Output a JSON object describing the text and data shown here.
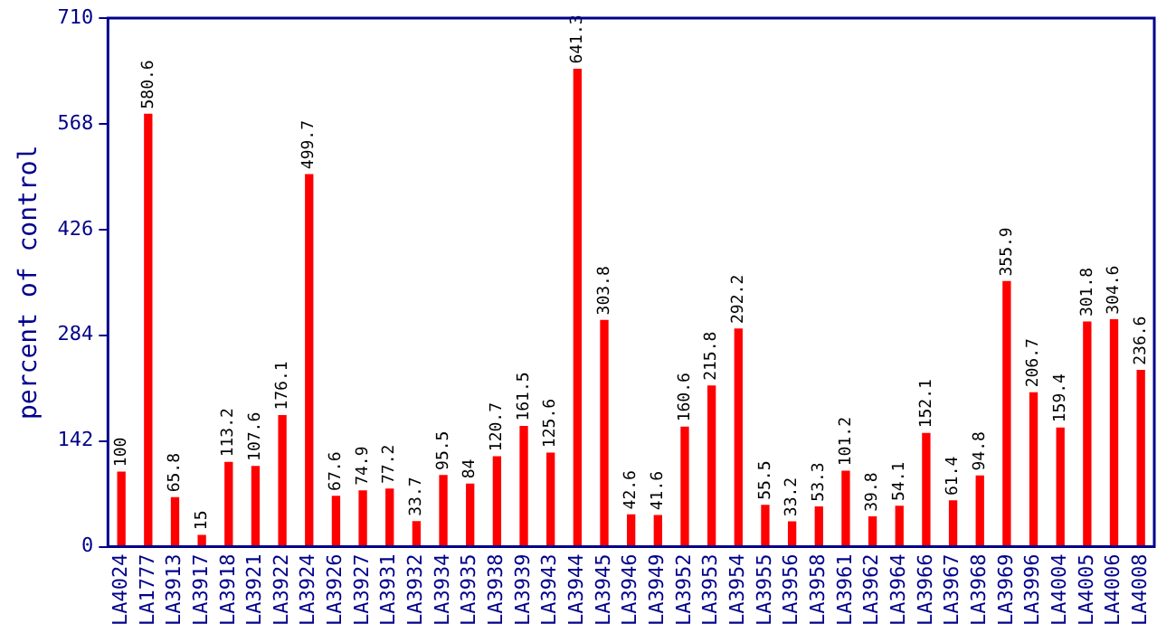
{
  "chart_data": {
    "type": "bar",
    "ylabel": "percent of control",
    "categories": [
      "LA4024",
      "LA1777",
      "LA3913",
      "LA3917",
      "LA3918",
      "LA3921",
      "LA3922",
      "LA3924",
      "LA3926",
      "LA3927",
      "LA3931",
      "LA3932",
      "LA3934",
      "LA3935",
      "LA3938",
      "LA3939",
      "LA3943",
      "LA3944",
      "LA3945",
      "LA3946",
      "LA3949",
      "LA3952",
      "LA3953",
      "LA3954",
      "LA3955",
      "LA3956",
      "LA3958",
      "LA3961",
      "LA3962",
      "LA3964",
      "LA3966",
      "LA3967",
      "LA3968",
      "LA3969",
      "LA3996",
      "LA4004",
      "LA4005",
      "LA4006",
      "LA4008"
    ],
    "values": [
      100,
      580.6,
      65.8,
      15,
      113.2,
      107.6,
      176.1,
      499.7,
      67.6,
      74.9,
      77.2,
      33.7,
      95.5,
      84,
      120.7,
      161.5,
      125.6,
      641.3,
      303.8,
      42.6,
      41.6,
      160.6,
      215.8,
      292.2,
      55.5,
      33.2,
      53.3,
      101.2,
      39.8,
      54.1,
      152.1,
      61.4,
      94.8,
      355.9,
      206.7,
      159.4,
      301.8,
      304.6,
      236.6
    ],
    "color": "#ff0000",
    "ylim": [
      0,
      710
    ],
    "yticks": [
      0,
      142,
      284,
      426,
      568,
      710
    ],
    "grid": false,
    "legend": false,
    "data_labels": true
  }
}
